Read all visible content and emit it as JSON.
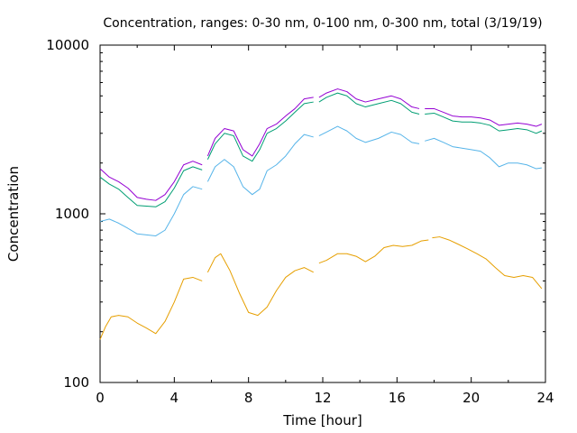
{
  "chart_data": {
    "type": "line",
    "title": "Concentration, ranges: 0-30 nm, 0-100 nm, 0-300 nm, total (3/19/19)",
    "xlabel": "Time [hour]",
    "ylabel": "Concentration",
    "xlim": [
      0,
      24
    ],
    "ylim": [
      100,
      10000
    ],
    "yscale": "log",
    "grid": false,
    "legend": "none",
    "xticks": [
      "0",
      "4",
      "8",
      "12",
      "16",
      "20",
      "24"
    ],
    "yticks": [
      "100",
      "1000",
      "10000"
    ],
    "series": [
      {
        "color": "#9400d3",
        "segments": [
          [
            [
              0,
              1850
            ],
            [
              0.5,
              1650
            ],
            [
              1,
              1550
            ],
            [
              1.5,
              1420
            ],
            [
              2,
              1250
            ],
            [
              2.5,
              1220
            ],
            [
              3,
              1200
            ],
            [
              3.5,
              1300
            ],
            [
              4,
              1550
            ],
            [
              4.5,
              1950
            ],
            [
              5,
              2050
            ],
            [
              5.5,
              1950
            ]
          ],
          [
            [
              5.8,
              2200
            ],
            [
              6.2,
              2800
            ],
            [
              6.7,
              3200
            ],
            [
              7.2,
              3100
            ],
            [
              7.7,
              2400
            ],
            [
              8.2,
              2200
            ],
            [
              8.6,
              2600
            ],
            [
              9,
              3200
            ],
            [
              9.5,
              3400
            ],
            [
              10,
              3800
            ],
            [
              10.5,
              4200
            ],
            [
              11,
              4800
            ],
            [
              11.5,
              4900
            ]
          ],
          [
            [
              11.8,
              4900
            ],
            [
              12.2,
              5200
            ],
            [
              12.8,
              5500
            ],
            [
              13.3,
              5300
            ],
            [
              13.8,
              4800
            ],
            [
              14.3,
              4600
            ],
            [
              15,
              4800
            ],
            [
              15.7,
              5000
            ],
            [
              16.2,
              4800
            ],
            [
              16.8,
              4300
            ],
            [
              17.2,
              4200
            ]
          ],
          [
            [
              17.5,
              4200
            ],
            [
              18,
              4200
            ],
            [
              18.5,
              4000
            ],
            [
              19,
              3800
            ],
            [
              19.5,
              3750
            ],
            [
              20,
              3750
            ],
            [
              20.5,
              3700
            ],
            [
              21,
              3600
            ],
            [
              21.5,
              3350
            ],
            [
              22,
              3400
            ],
            [
              22.5,
              3450
            ],
            [
              23,
              3400
            ],
            [
              23.5,
              3300
            ],
            [
              23.8,
              3400
            ]
          ]
        ]
      },
      {
        "color": "#009e73",
        "segments": [
          [
            [
              0,
              1650
            ],
            [
              0.5,
              1500
            ],
            [
              1,
              1400
            ],
            [
              1.5,
              1250
            ],
            [
              2,
              1120
            ],
            [
              2.5,
              1110
            ],
            [
              3,
              1100
            ],
            [
              3.5,
              1180
            ],
            [
              4,
              1420
            ],
            [
              4.5,
              1800
            ],
            [
              5,
              1900
            ],
            [
              5.5,
              1820
            ]
          ],
          [
            [
              5.8,
              2100
            ],
            [
              6.2,
              2600
            ],
            [
              6.7,
              3000
            ],
            [
              7.2,
              2900
            ],
            [
              7.7,
              2200
            ],
            [
              8.2,
              2050
            ],
            [
              8.6,
              2400
            ],
            [
              9,
              3000
            ],
            [
              9.5,
              3200
            ],
            [
              10,
              3550
            ],
            [
              10.5,
              4000
            ],
            [
              11,
              4500
            ],
            [
              11.5,
              4600
            ]
          ],
          [
            [
              11.8,
              4600
            ],
            [
              12.2,
              4900
            ],
            [
              12.8,
              5200
            ],
            [
              13.3,
              5000
            ],
            [
              13.8,
              4500
            ],
            [
              14.3,
              4300
            ],
            [
              15,
              4500
            ],
            [
              15.7,
              4700
            ],
            [
              16.2,
              4500
            ],
            [
              16.8,
              4000
            ],
            [
              17.2,
              3900
            ]
          ],
          [
            [
              17.5,
              3900
            ],
            [
              18,
              3950
            ],
            [
              18.5,
              3750
            ],
            [
              19,
              3550
            ],
            [
              19.5,
              3500
            ],
            [
              20,
              3500
            ],
            [
              20.5,
              3450
            ],
            [
              21,
              3350
            ],
            [
              21.5,
              3100
            ],
            [
              22,
              3150
            ],
            [
              22.5,
              3200
            ],
            [
              23,
              3150
            ],
            [
              23.5,
              3000
            ],
            [
              23.8,
              3100
            ]
          ]
        ]
      },
      {
        "color": "#56b4e9",
        "segments": [
          [
            [
              0,
              900
            ],
            [
              0.5,
              930
            ],
            [
              1,
              880
            ],
            [
              1.5,
              820
            ],
            [
              2,
              760
            ],
            [
              2.5,
              750
            ],
            [
              3,
              740
            ],
            [
              3.5,
              800
            ],
            [
              4,
              1000
            ],
            [
              4.5,
              1300
            ],
            [
              5,
              1450
            ],
            [
              5.5,
              1400
            ]
          ],
          [
            [
              5.8,
              1550
            ],
            [
              6.2,
              1900
            ],
            [
              6.7,
              2100
            ],
            [
              7.2,
              1900
            ],
            [
              7.7,
              1450
            ],
            [
              8.2,
              1300
            ],
            [
              8.6,
              1400
            ],
            [
              9,
              1800
            ],
            [
              9.5,
              1950
            ],
            [
              10,
              2200
            ],
            [
              10.5,
              2600
            ],
            [
              11,
              2950
            ],
            [
              11.5,
              2850
            ]
          ],
          [
            [
              11.8,
              2900
            ],
            [
              12.2,
              3050
            ],
            [
              12.8,
              3300
            ],
            [
              13.3,
              3100
            ],
            [
              13.8,
              2800
            ],
            [
              14.3,
              2650
            ],
            [
              15,
              2800
            ],
            [
              15.7,
              3050
            ],
            [
              16.2,
              2950
            ],
            [
              16.8,
              2650
            ],
            [
              17.2,
              2600
            ]
          ],
          [
            [
              17.5,
              2700
            ],
            [
              18,
              2800
            ],
            [
              18.5,
              2650
            ],
            [
              19,
              2500
            ],
            [
              19.5,
              2450
            ],
            [
              20,
              2400
            ],
            [
              20.5,
              2350
            ],
            [
              21,
              2150
            ],
            [
              21.5,
              1900
            ],
            [
              22,
              2000
            ],
            [
              22.5,
              2000
            ],
            [
              23,
              1950
            ],
            [
              23.5,
              1850
            ],
            [
              23.8,
              1870
            ]
          ]
        ]
      },
      {
        "color": "#e69f00",
        "segments": [
          [
            [
              0,
              180
            ],
            [
              0.3,
              215
            ],
            [
              0.6,
              245
            ],
            [
              1,
              250
            ],
            [
              1.5,
              245
            ],
            [
              2,
              225
            ],
            [
              2.5,
              210
            ],
            [
              3,
              195
            ],
            [
              3.5,
              230
            ],
            [
              4,
              300
            ],
            [
              4.5,
              410
            ],
            [
              5,
              420
            ],
            [
              5.5,
              400
            ]
          ],
          [
            [
              5.8,
              450
            ],
            [
              6.2,
              550
            ],
            [
              6.5,
              580
            ],
            [
              7,
              460
            ],
            [
              7.5,
              340
            ],
            [
              8,
              260
            ],
            [
              8.5,
              250
            ],
            [
              9,
              280
            ],
            [
              9.5,
              350
            ],
            [
              10,
              420
            ],
            [
              10.5,
              460
            ],
            [
              11,
              480
            ],
            [
              11.5,
              450
            ]
          ],
          [
            [
              11.8,
              510
            ],
            [
              12.2,
              530
            ],
            [
              12.8,
              580
            ],
            [
              13.3,
              580
            ],
            [
              13.8,
              560
            ],
            [
              14.3,
              520
            ],
            [
              14.8,
              560
            ],
            [
              15.3,
              630
            ],
            [
              15.8,
              650
            ],
            [
              16.3,
              640
            ],
            [
              16.8,
              650
            ],
            [
              17.3,
              690
            ],
            [
              17.7,
              700
            ]
          ],
          [
            [
              17.9,
              720
            ],
            [
              18.3,
              730
            ],
            [
              18.8,
              700
            ],
            [
              19.3,
              660
            ],
            [
              19.8,
              620
            ],
            [
              20.3,
              580
            ],
            [
              20.8,
              540
            ],
            [
              21.3,
              480
            ],
            [
              21.8,
              430
            ],
            [
              22.3,
              420
            ],
            [
              22.8,
              430
            ],
            [
              23.3,
              420
            ],
            [
              23.8,
              360
            ]
          ]
        ]
      }
    ]
  }
}
